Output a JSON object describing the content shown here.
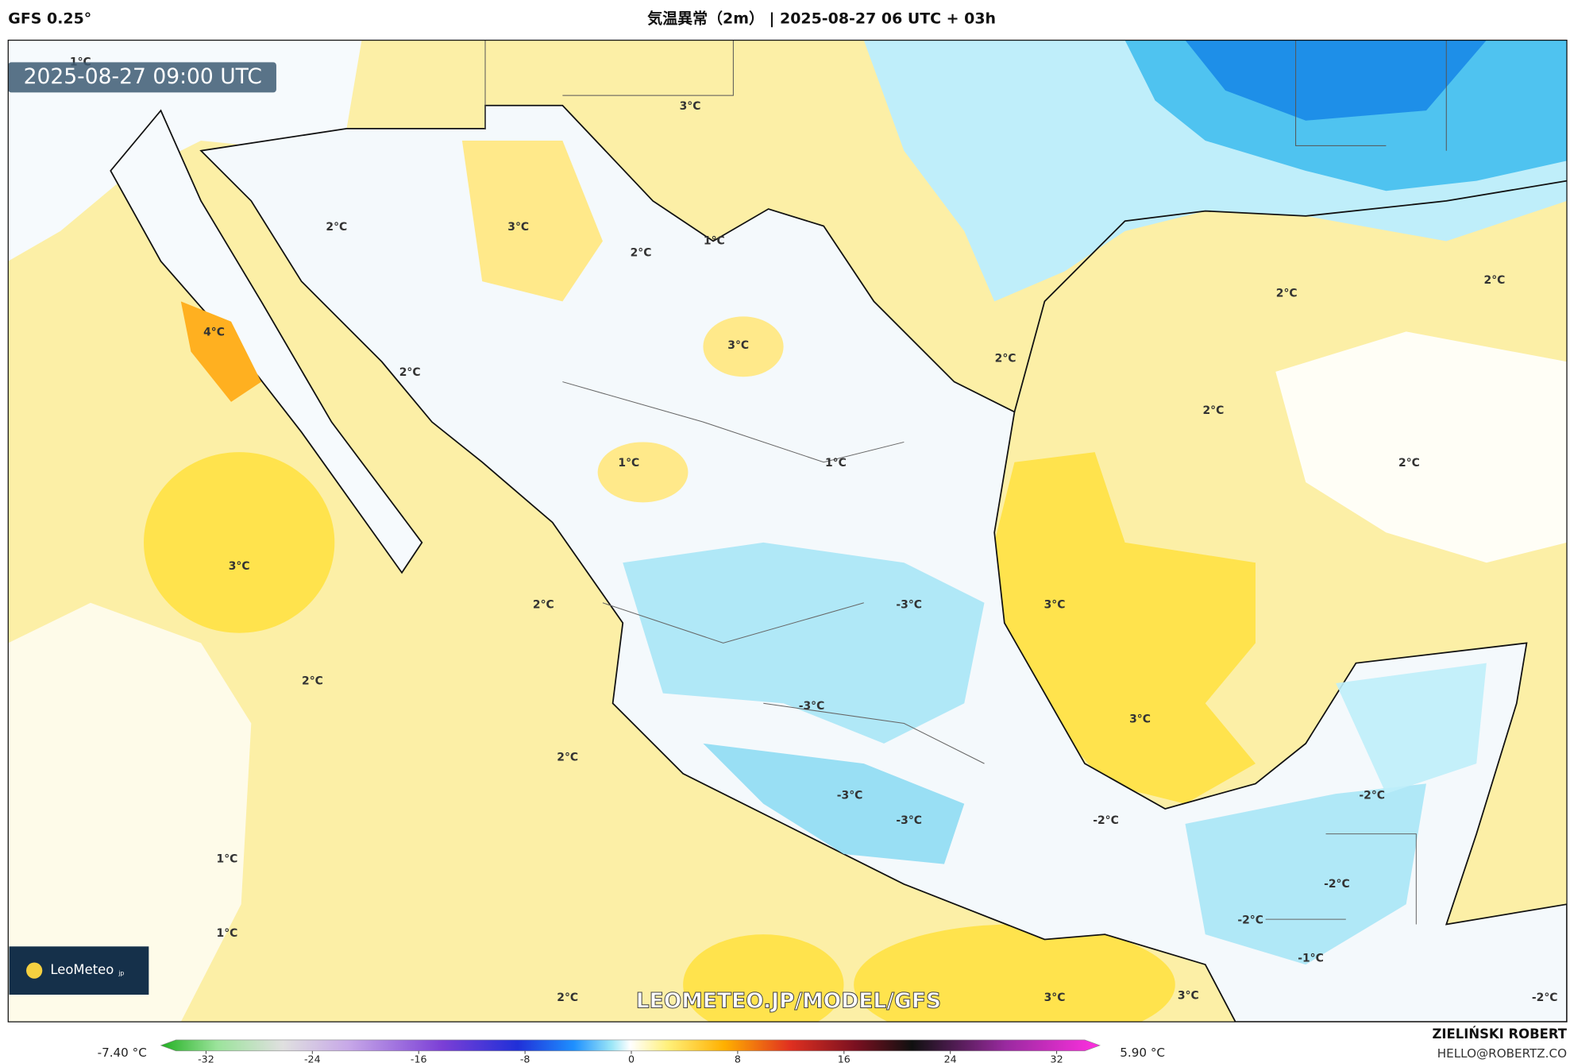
{
  "header": {
    "model": "GFS 0.25°",
    "title": "気温異常（2m） | 2025-08-27 06 UTC + 03h"
  },
  "map": {
    "timestamp": "2025-08-27 09:00 UTC",
    "watermark": "LEOMETEO.JP/MODEL/GFS",
    "logo": "LeoMeteo",
    "logo_suffix": "jp",
    "contour_labels": [
      "1°C",
      "3°C",
      "2°C",
      "3°C",
      "1°C",
      "2°C",
      "2°C",
      "2°C",
      "4°C",
      "3°C",
      "2°C",
      "2°C",
      "2°C",
      "1°C",
      "1°C",
      "2°C",
      "3°C",
      "2°C",
      "-3°C",
      "3°C",
      "2°C",
      "-3°C",
      "3°C",
      "2°C",
      "-3°C",
      "-2°C",
      "-3°C",
      "-2°C",
      "1°C",
      "-2°C",
      "-2°C",
      "1°C",
      "-1°C",
      "2°C",
      "3°C",
      "3°C",
      "-2°C"
    ]
  },
  "colorbar": {
    "min_label": "-7.40 °C",
    "max_label": "5.90 °C",
    "ticks": [
      -32,
      -24,
      -16,
      -8,
      0,
      8,
      16,
      24,
      32
    ]
  },
  "footer": {
    "author": "ZIELIŃSKI ROBERT",
    "email": "HELLO@ROBERTZ.CO"
  }
}
